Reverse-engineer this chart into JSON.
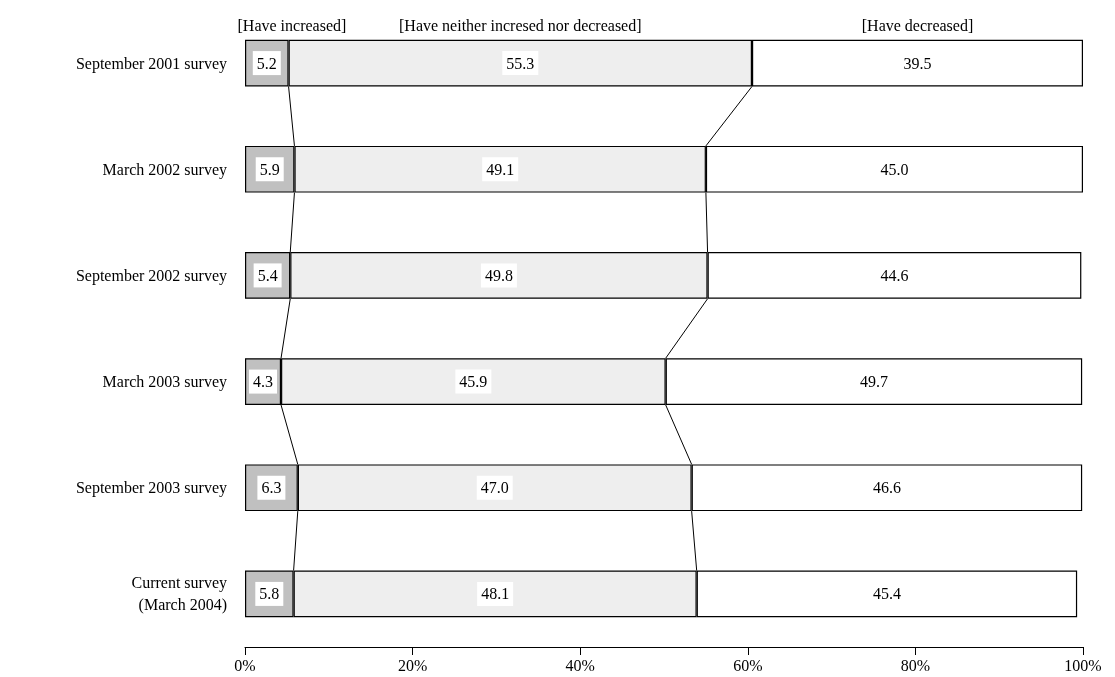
{
  "chart_data": {
    "type": "bar",
    "orientation": "horizontal",
    "stacked": true,
    "categories": [
      "September 2001 survey",
      "March 2002 survey",
      "September 2002 survey",
      "March 2003 survey",
      "September 2003 survey",
      "Current survey\n(March 2004)"
    ],
    "series": [
      {
        "name": "[Have increased]",
        "color": "#c0c0c0",
        "values": [
          5.2,
          5.9,
          5.4,
          4.3,
          6.3,
          5.8
        ]
      },
      {
        "name": "[Have neither incresed nor decreased]",
        "color": "#eeeeee",
        "values": [
          55.3,
          49.1,
          49.8,
          45.9,
          47.0,
          48.1
        ]
      },
      {
        "name": "[Have decreased]",
        "color": "#ffffff",
        "values": [
          39.5,
          45.0,
          44.6,
          49.7,
          46.6,
          45.4
        ]
      }
    ],
    "value_labels": [
      [
        "5.2",
        "5.9",
        "5.4",
        "4.3",
        "6.3",
        "5.8"
      ],
      [
        "55.3",
        "49.1",
        "49.8",
        "45.9",
        "47.0",
        "48.1"
      ],
      [
        "39.5",
        "45.0",
        "44.6",
        "49.7",
        "46.6",
        "45.4"
      ]
    ],
    "xlim": [
      0,
      100
    ],
    "xticks": [
      {
        "value": 0,
        "label": "0%"
      },
      {
        "value": 20,
        "label": "20%"
      },
      {
        "value": 40,
        "label": "40%"
      },
      {
        "value": 60,
        "label": "60%"
      },
      {
        "value": 80,
        "label": "80%"
      },
      {
        "value": 100,
        "label": "100%"
      }
    ],
    "grid": false,
    "legend": false
  }
}
